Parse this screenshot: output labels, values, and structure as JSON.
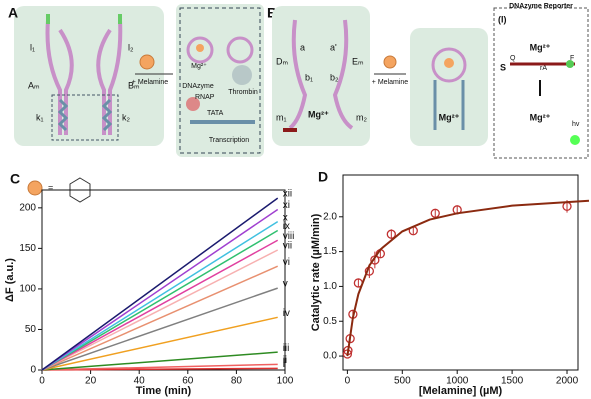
{
  "diagram": {
    "panel_a": {
      "label": "A",
      "l1": "l₁",
      "l2": "l₂",
      "am": "Aₘ",
      "bm": "Bₘ",
      "k1": "k₁",
      "k2": "k₂",
      "arrow": "+ Melamine"
    },
    "inset": {
      "mg": "Mg²⁺",
      "dnazyme": "DNAzyme",
      "thrombin": "Thrombin",
      "rnap": "RNAP",
      "tata": "TATA",
      "transcription": "Transcription"
    },
    "panel_b": {
      "label": "B",
      "a": "a",
      "a2": "a'",
      "dm": "Dₘ",
      "em": "Eₘ",
      "b1": "b₁",
      "b2": "b₂",
      "m1": "m₁",
      "m2": "m₂",
      "mg": "Mg²⁺",
      "arrow": "+ Melamine",
      "mg_product": "Mg²⁺"
    },
    "reporter": {
      "title": "DNAzyme Reporter",
      "tag": "(I)",
      "mg_top": "Mg²⁺",
      "q": "Q",
      "f": "F",
      "s": "S",
      "ra": "rA",
      "mg_bottom": "Mg²⁺",
      "hv": "hv"
    },
    "legend": {
      "equals": "="
    }
  },
  "chart_data": [
    {
      "type": "line",
      "panel_label": "C",
      "xlabel": "Time (min)",
      "ylabel": "ΔF (a.u.)",
      "x": [
        0,
        97
      ],
      "series": [
        {
          "name": "i",
          "color": "#e03030",
          "values": [
            0,
            2
          ]
        },
        {
          "name": "ii",
          "color": "#f06060",
          "values": [
            0,
            7
          ]
        },
        {
          "name": "iii",
          "color": "#2e8b22",
          "values": [
            0,
            22
          ]
        },
        {
          "name": "iv",
          "color": "#f0a020",
          "values": [
            0,
            65
          ]
        },
        {
          "name": "v",
          "color": "#808080",
          "values": [
            0,
            101
          ]
        },
        {
          "name": "vi",
          "color": "#e89070",
          "values": [
            0,
            128
          ]
        },
        {
          "name": "vii",
          "color": "#f7b0b0",
          "values": [
            0,
            148
          ]
        },
        {
          "name": "viii",
          "color": "#e040a0",
          "values": [
            0,
            160
          ]
        },
        {
          "name": "ix",
          "color": "#30c070",
          "values": [
            0,
            172
          ]
        },
        {
          "name": "x",
          "color": "#40c0e0",
          "values": [
            0,
            183
          ]
        },
        {
          "name": "xi",
          "color": "#a040d0",
          "values": [
            0,
            198
          ]
        },
        {
          "name": "xii",
          "color": "#1a1a6e",
          "values": [
            0,
            212
          ]
        }
      ],
      "xlim": [
        0,
        100
      ],
      "ylim": [
        0,
        222
      ],
      "xticks": [
        0,
        20,
        40,
        60,
        80,
        100
      ],
      "yticks": [
        0,
        50,
        100,
        150,
        200
      ]
    },
    {
      "type": "scatter",
      "panel_label": "D",
      "xlabel": "[Melamine] (µM)",
      "ylabel": "Catalytic rate (µM/min)",
      "series": [
        {
          "color": "#c03030",
          "x": [
            0,
            5,
            25,
            50,
            100,
            200,
            250,
            300,
            400,
            600,
            800,
            1000,
            2000
          ],
          "values": [
            0.03,
            0.08,
            0.25,
            0.6,
            1.05,
            1.22,
            1.38,
            1.47,
            1.75,
            1.8,
            2.05,
            2.1,
            2.15
          ],
          "error": [
            0.03,
            0.03,
            0.05,
            0.06,
            0.05,
            0.1,
            0.12,
            0.05,
            0.07,
            0.05,
            0.06,
            0.05,
            0.09
          ]
        },
        {
          "type": "line",
          "color": "#8b2a10",
          "x": [
            0,
            50,
            100,
            200,
            300,
            500,
            750,
            1000,
            1500,
            2200
          ],
          "values": [
            0,
            0.55,
            0.89,
            1.3,
            1.53,
            1.79,
            1.96,
            2.05,
            2.16,
            2.23
          ]
        }
      ],
      "xlim": [
        -40,
        2100
      ],
      "ylim": [
        -0.2,
        2.6
      ],
      "xticks": [
        0,
        500,
        1000,
        1500,
        2000
      ],
      "yticks": [
        {
          "value": 0,
          "label": "0.0"
        },
        0.5,
        {
          "value": 1,
          "label": "1.0"
        },
        1.5,
        {
          "value": 2,
          "label": "2.0"
        }
      ]
    }
  ]
}
